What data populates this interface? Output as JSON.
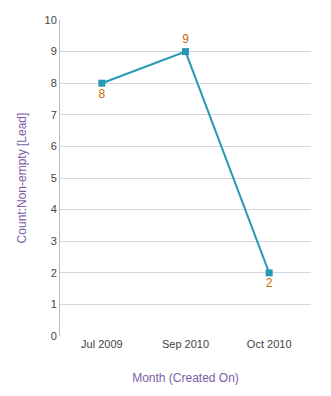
{
  "chart_data": {
    "type": "line",
    "categories": [
      "Jul 2009",
      "Sep 2010",
      "Oct 2010"
    ],
    "values": [
      8,
      9,
      2
    ],
    "color": "#2899b5",
    "marker": "square",
    "xlabel": "Month (Created On)",
    "ylabel": "Count:Non-empty [Lead]",
    "ylim": [
      0,
      10
    ],
    "yticks": [
      0,
      1,
      2,
      3,
      4,
      5,
      6,
      7,
      8,
      9,
      10
    ],
    "grid": true,
    "data_labels": true
  }
}
